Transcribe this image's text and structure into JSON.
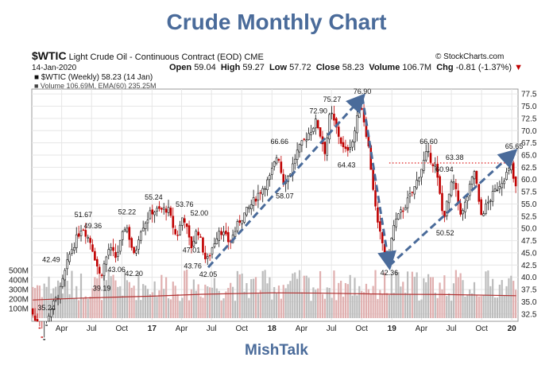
{
  "title": "Crude Monthly Chart",
  "footer": "MishTalk",
  "header": {
    "symbol": "$WTIC",
    "name": "Light Crude Oil - Continuous Contract (EOD)",
    "exchange": "CME",
    "copyright": "© StockCharts.com",
    "date": "14-Jan-2020",
    "open_label": "Open",
    "open": "59.04",
    "high_label": "High",
    "high": "59.27",
    "low_label": "Low",
    "low": "57.72",
    "close_label": "Close",
    "close": "58.23",
    "volume_label": "Volume",
    "volume": "106.7M",
    "chg_label": "Chg",
    "chg": "-0.81 (-1.37%)",
    "chg_arrow": "▼",
    "legend_price": "■ $WTIC (Weekly) 58.23 (14 Jan)",
    "legend_volume": "■ Volume 106.69M, EMA(60) 235.25M"
  },
  "colors": {
    "title": "#4a6b9a",
    "candle": "#111111",
    "candle_down": "#c00000",
    "volume_bar": "#bcbcbc",
    "volume_bar_down": "#e0b0b0",
    "ema_line": "#b03030",
    "trendline": "#4a6b9a",
    "resistance": "#e03030",
    "grid": "#e6e6e6"
  },
  "chart_data": {
    "type": "line",
    "title": "Crude Monthly Chart",
    "x_labels": [
      "Apr",
      "Jul",
      "Oct",
      "17",
      "Apr",
      "Jul",
      "Oct",
      "18",
      "Apr",
      "Jul",
      "Oct",
      "19",
      "Apr",
      "Jul",
      "Oct",
      "20"
    ],
    "y_ticks": [
      32.5,
      35.0,
      37.5,
      40.0,
      42.5,
      45.0,
      47.5,
      50.0,
      52.5,
      55.0,
      57.5,
      60.0,
      62.5,
      65.0,
      67.5,
      70.0,
      72.5,
      75.0,
      77.5
    ],
    "y_tick_labels": [
      "32.5",
      "35.0",
      "37.5",
      "40.0",
      "42.5",
      "45.0",
      "47.5",
      "50.0",
      "52.5",
      "55.0",
      "57.5",
      "60.0",
      "62.5",
      "65.0",
      "67.5",
      "70.0",
      "72.5",
      "75.0",
      "77.5"
    ],
    "ylim": [
      31.0,
      78.5
    ],
    "volume_ticks": [
      "100M",
      "200M",
      "300M",
      "400M",
      "500M"
    ],
    "annotations": [
      {
        "label": "42.49",
        "date": "2016-02-29",
        "value": 42.49
      },
      {
        "label": "35.24",
        "date": "2016-02-15",
        "value": 35.24
      },
      {
        "label": "51.67",
        "date": "2016-06-06",
        "value": 51.67
      },
      {
        "label": "49.36",
        "date": "2016-07-05",
        "value": 49.36
      },
      {
        "label": "39.19",
        "date": "2016-08-01",
        "value": 39.19
      },
      {
        "label": "43.06",
        "date": "2016-09-15",
        "value": 43.06
      },
      {
        "label": "42.20",
        "date": "2016-11-07",
        "value": 42.2
      },
      {
        "label": "52.22",
        "date": "2016-10-17",
        "value": 52.22
      },
      {
        "label": "55.24",
        "date": "2017-01-06",
        "value": 55.24
      },
      {
        "label": "53.76",
        "date": "2017-04-10",
        "value": 53.76
      },
      {
        "label": "52.00",
        "date": "2017-05-25",
        "value": 52.0
      },
      {
        "label": "47.01",
        "date": "2017-05-01",
        "value": 47.01
      },
      {
        "label": "43.76",
        "date": "2017-05-05",
        "value": 43.76
      },
      {
        "label": "42.05",
        "date": "2017-06-21",
        "value": 42.05
      },
      {
        "label": "66.66",
        "date": "2018-01-24",
        "value": 66.66
      },
      {
        "label": "58.07",
        "date": "2018-02-09",
        "value": 58.07
      },
      {
        "label": "72.90",
        "date": "2018-05-22",
        "value": 72.9
      },
      {
        "label": "75.27",
        "date": "2018-07-03",
        "value": 75.27
      },
      {
        "label": "64.43",
        "date": "2018-08-16",
        "value": 64.43
      },
      {
        "label": "76.90",
        "date": "2018-10-03",
        "value": 76.9
      },
      {
        "label": "42.36",
        "date": "2018-12-24",
        "value": 42.36
      },
      {
        "label": "66.60",
        "date": "2019-04-23",
        "value": 66.6
      },
      {
        "label": "60.94",
        "date": "2019-06-10",
        "value": 60.94
      },
      {
        "label": "63.38",
        "date": "2019-07-11",
        "value": 63.38
      },
      {
        "label": "50.52",
        "date": "2019-06-12",
        "value": 50.52
      },
      {
        "label": "65.65",
        "date": "2020-01-08",
        "value": 65.65
      }
    ],
    "trendlines": [
      {
        "from": {
          "date": "2017-06-21",
          "value": 42.05
        },
        "to": {
          "date": "2018-10-03",
          "value": 76.9
        }
      },
      {
        "from": {
          "date": "2018-10-03",
          "value": 76.9
        },
        "to": {
          "date": "2018-12-24",
          "value": 42.36
        }
      },
      {
        "from": {
          "date": "2018-12-24",
          "value": 42.36
        },
        "to": {
          "date": "2020-01-08",
          "value": 65.65
        }
      }
    ],
    "resistance_line": {
      "value": 63.38,
      "from": "2018-12-24",
      "to": "2020-01-14"
    },
    "price_anchors": [
      [
        "2016-01-04",
        33.5
      ],
      [
        "2016-02-11",
        26.5
      ],
      [
        "2016-02-29",
        33.0
      ],
      [
        "2016-04-01",
        37.0
      ],
      [
        "2016-05-02",
        45.0
      ],
      [
        "2016-06-08",
        50.5
      ],
      [
        "2016-07-05",
        47.0
      ],
      [
        "2016-08-02",
        40.0
      ],
      [
        "2016-08-29",
        46.0
      ],
      [
        "2016-09-19",
        44.0
      ],
      [
        "2016-10-19",
        51.0
      ],
      [
        "2016-11-14",
        44.0
      ],
      [
        "2016-11-30",
        49.5
      ],
      [
        "2017-01-06",
        53.5
      ],
      [
        "2017-02-24",
        54.0
      ],
      [
        "2017-03-22",
        48.0
      ],
      [
        "2017-04-12",
        53.0
      ],
      [
        "2017-05-05",
        46.0
      ],
      [
        "2017-05-25",
        50.0
      ],
      [
        "2017-06-21",
        43.0
      ],
      [
        "2017-07-31",
        50.0
      ],
      [
        "2017-08-31",
        47.0
      ],
      [
        "2017-09-29",
        51.5
      ],
      [
        "2017-11-01",
        54.5
      ],
      [
        "2017-11-30",
        57.5
      ],
      [
        "2017-12-29",
        60.0
      ],
      [
        "2018-01-25",
        65.5
      ],
      [
        "2018-02-09",
        59.5
      ],
      [
        "2018-03-01",
        61.0
      ],
      [
        "2018-03-23",
        65.5
      ],
      [
        "2018-05-22",
        72.0
      ],
      [
        "2018-06-18",
        65.5
      ],
      [
        "2018-07-03",
        74.0
      ],
      [
        "2018-08-16",
        65.5
      ],
      [
        "2018-09-10",
        68.0
      ],
      [
        "2018-10-03",
        76.0
      ],
      [
        "2018-10-26",
        67.5
      ],
      [
        "2018-11-23",
        51.0
      ],
      [
        "2018-12-24",
        43.0
      ],
      [
        "2019-01-14",
        51.0
      ],
      [
        "2019-02-14",
        54.5
      ],
      [
        "2019-03-15",
        58.0
      ],
      [
        "2019-04-23",
        65.5
      ],
      [
        "2019-05-20",
        62.5
      ],
      [
        "2019-06-12",
        52.0
      ],
      [
        "2019-07-11",
        60.0
      ],
      [
        "2019-08-07",
        52.5
      ],
      [
        "2019-09-16",
        62.0
      ],
      [
        "2019-10-03",
        52.5
      ],
      [
        "2019-11-15",
        57.5
      ],
      [
        "2019-12-20",
        61.0
      ],
      [
        "2020-01-08",
        63.0
      ],
      [
        "2020-01-14",
        58.23
      ]
    ],
    "volume_ema_anchors": [
      [
        "2016-01-04",
        190
      ],
      [
        "2016-06-01",
        210
      ],
      [
        "2017-01-02",
        230
      ],
      [
        "2017-06-01",
        250
      ],
      [
        "2018-01-01",
        265
      ],
      [
        "2018-06-01",
        262
      ],
      [
        "2019-01-01",
        250
      ],
      [
        "2019-06-01",
        248
      ],
      [
        "2020-01-14",
        235
      ]
    ]
  }
}
